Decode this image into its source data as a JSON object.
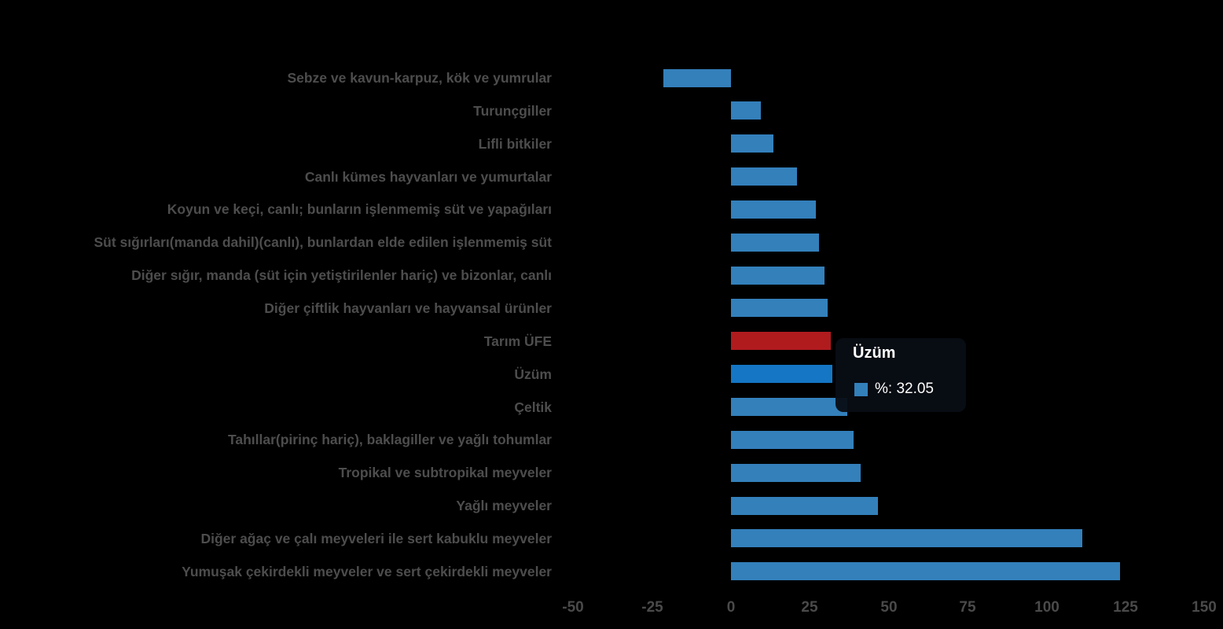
{
  "chart_data": {
    "type": "bar",
    "orientation": "horizontal",
    "title": "",
    "series_name": "%",
    "categories": [
      "Sebze ve kavun-karpuz, kök ve yumrular",
      "Turunçgiller",
      "Lifli bitkiler",
      "Canlı kümes hayvanları ve yumurtalar",
      "Koyun ve keçi, canlı; bunların işlenmemiş süt ve yapağıları",
      "Süt sığırları(manda dahil)(canlı), bunlardan elde edilen işlenmemiş süt",
      "Diğer sığır, manda (süt için yetiştirilenler hariç) ve bizonlar, canlı",
      "Diğer çiftlik hayvanları ve hayvansal ürünler",
      "Tarım ÜFE",
      "Üzüm",
      "Çeltik",
      "Tahıllar(pirinç hariç), baklagiller ve yağlı tohumlar",
      "Tropikal ve subtropikal meyveler",
      "Yağlı meyveler",
      "Diğer ağaç ve çalı meyveleri ile sert kabuklu meyveler",
      "Yumuşak çekirdekli meyveler ve sert çekirdekli meyveler"
    ],
    "values": [
      -21.3,
      9.5,
      13.5,
      21.0,
      26.8,
      28.0,
      29.7,
      30.7,
      31.5,
      32.05,
      36.9,
      38.8,
      41.1,
      46.6,
      111.2,
      123.2
    ],
    "emphasis_category": "Tarım ÜFE",
    "hovered_category": "Üzüm",
    "xlabel": "",
    "ylabel": "",
    "xlim": [
      -50,
      150
    ],
    "x_ticks": [
      -50,
      -25,
      0,
      25,
      50,
      75,
      100,
      125,
      150
    ],
    "grid": false,
    "legend": "none"
  },
  "tooltip": {
    "title": "Üzüm",
    "value_text": "%: 32.05"
  },
  "colors": {
    "background": "#000000",
    "bar": "#3380BB",
    "bar_hover": "#1476C4",
    "bar_emphasis": "#B01B1E",
    "label_text": "#4D4D4D",
    "axis_text": "#4A4A4A",
    "tooltip_bg": "rgba(8,13,20,0.95)",
    "tooltip_text": "#FFFFFF",
    "tooltip_swatch": "#3380BB"
  }
}
